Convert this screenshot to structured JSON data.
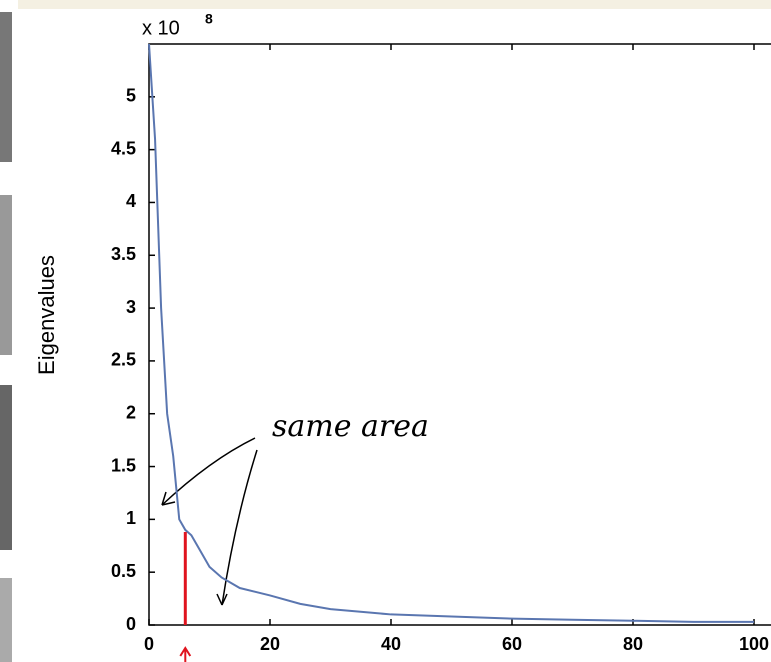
{
  "chart_data": {
    "type": "line",
    "y_label": "Eigenvalues",
    "multiplier": {
      "base": "x 10",
      "exponent": "8"
    },
    "annotation": "same area",
    "x": [
      0,
      1,
      2,
      3,
      4,
      5,
      6,
      7,
      8,
      10,
      12,
      15,
      20,
      25,
      30,
      40,
      50,
      60,
      70,
      80,
      90,
      100
    ],
    "series": [
      {
        "name": "Eigenvalues",
        "color": "#5a76b0",
        "values": [
          5.5,
          4.6,
          3.0,
          2.0,
          1.6,
          1.0,
          0.9,
          0.85,
          0.75,
          0.55,
          0.45,
          0.35,
          0.28,
          0.2,
          0.15,
          0.1,
          0.08,
          0.06,
          0.05,
          0.04,
          0.03,
          0.03
        ]
      }
    ],
    "highlight": {
      "x": 6,
      "y": 0.88,
      "color": "#e0141e"
    },
    "xlim": [
      0,
      103
    ],
    "ylim": [
      0,
      5.5
    ],
    "xticks": [
      0,
      20,
      40,
      60,
      80,
      100
    ],
    "yticks": [
      0,
      0.5,
      1,
      1.5,
      2,
      2.5,
      3,
      3.5,
      4,
      4.5,
      5
    ]
  }
}
